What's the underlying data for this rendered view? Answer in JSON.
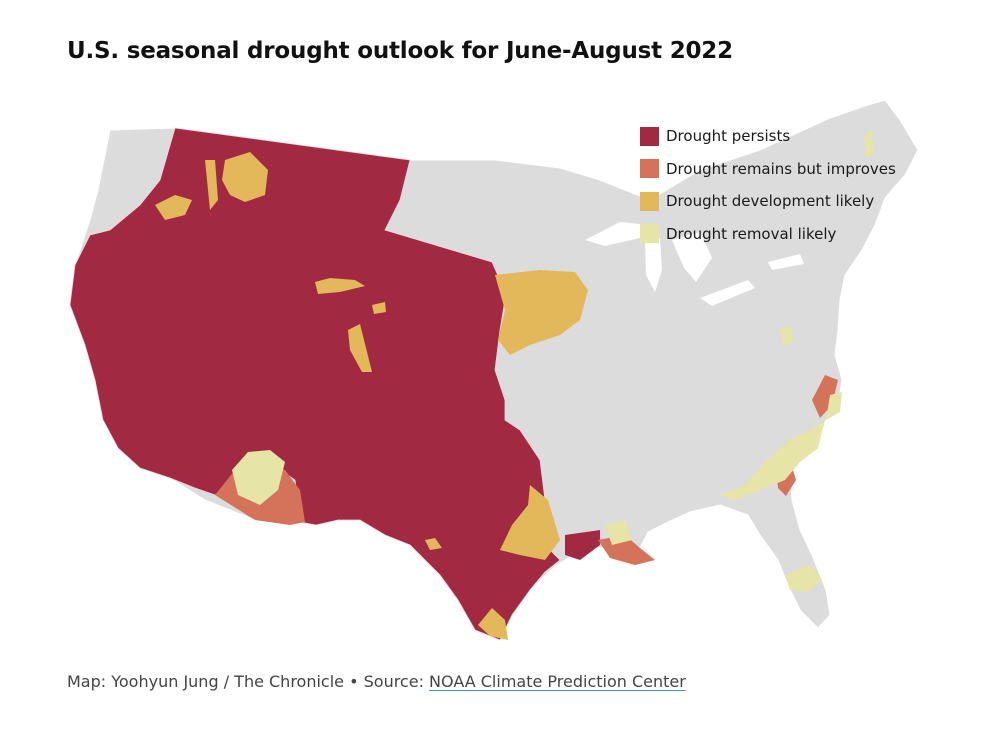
{
  "title": "U.S. seasonal drought outlook for June-August 2022",
  "legend": [
    {
      "label": "Drought persists",
      "color": "#a12a42"
    },
    {
      "label": "Drought remains but improves",
      "color": "#d4735a"
    },
    {
      "label": "Drought development likely",
      "color": "#e3b85a"
    },
    {
      "label": "Drought removal likely",
      "color": "#e6e4a6"
    }
  ],
  "credit": {
    "prefix": "Map: Yoohyun Jung / The Chronicle • Source: ",
    "link": "NOAA Climate Prediction Center"
  },
  "colors": {
    "land": "#dcdcdc",
    "border": "#ffffff",
    "persists": "#a12a42",
    "improves": "#d4735a",
    "development": "#e3b85a",
    "removal": "#e6e4a6"
  }
}
